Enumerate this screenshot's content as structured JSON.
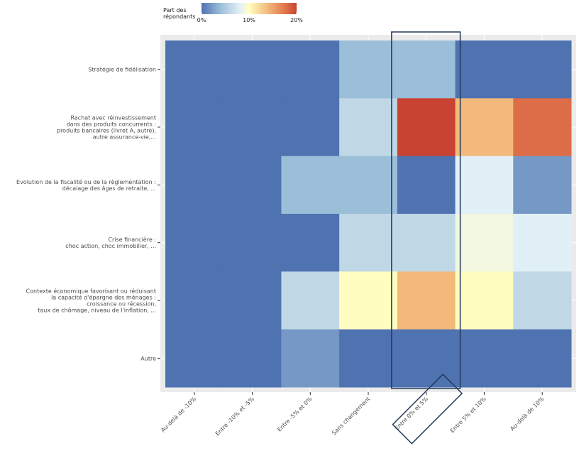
{
  "chart_data": {
    "type": "heatmap",
    "title": "",
    "xlabel": "",
    "ylabel": "",
    "x_categories": [
      "Au-delà de -10%",
      "Entre -10% et -5%",
      "Entre -5% et 0%",
      "Sans changement",
      "Entre 0% et 5%",
      "Entre 5% et 10%",
      "Au-delà de 10%"
    ],
    "y_categories": [
      [
        "Stratégie de fidélisation"
      ],
      [
        "Rachat avec réinvestissement",
        "dans des produits concurrents :",
        "produits bancaires (livret A, autre),",
        "autre assurance-vie,..."
      ],
      [
        "Evolution de la fiscalité ou de la règlementation :",
        "décalage des âges de retraite, ..."
      ],
      [
        "Crise financière :",
        "choc action, choc immobilier, ..."
      ],
      [
        "Contexte économique favorisant ou réduisant",
        "la capacité d'épargne des ménages :",
        "croissance ou récession,",
        "taux de chômage, niveau de l'inflation, ..."
      ],
      [
        "Autre"
      ]
    ],
    "values_percent": [
      [
        0,
        0,
        0,
        4,
        4,
        0,
        0
      ],
      [
        0,
        0,
        0,
        6,
        20,
        14,
        18
      ],
      [
        0,
        0,
        4,
        4,
        0,
        8,
        2
      ],
      [
        0,
        0,
        0,
        6,
        6,
        9,
        8
      ],
      [
        0,
        0,
        6,
        10,
        14,
        10,
        6
      ],
      [
        0,
        0,
        2,
        0,
        0,
        0,
        0
      ]
    ],
    "color_scale": {
      "min": 0,
      "max": 20,
      "stops": [
        {
          "value": 0,
          "color": "#4F72B1"
        },
        {
          "value": 2,
          "color": "#7698C7"
        },
        {
          "value": 4,
          "color": "#9BBED9"
        },
        {
          "value": 6,
          "color": "#C0D7E6"
        },
        {
          "value": 8,
          "color": "#E1F0F7"
        },
        {
          "value": 9,
          "color": "#F2F7E1"
        },
        {
          "value": 10,
          "color": "#FFFEC0"
        },
        {
          "value": 14,
          "color": "#F2B97A"
        },
        {
          "value": 18,
          "color": "#DD6D48"
        },
        {
          "value": 20,
          "color": "#C84331"
        }
      ]
    },
    "legend": {
      "title": [
        "Part des",
        "répondants"
      ],
      "ticks": [
        "0%",
        "10%",
        "20%"
      ],
      "placement": "top"
    },
    "highlight": {
      "column": "Entre 0% et 5%",
      "color": "#233A5A"
    },
    "panel_background": "#EBEBEB",
    "grid": true
  }
}
